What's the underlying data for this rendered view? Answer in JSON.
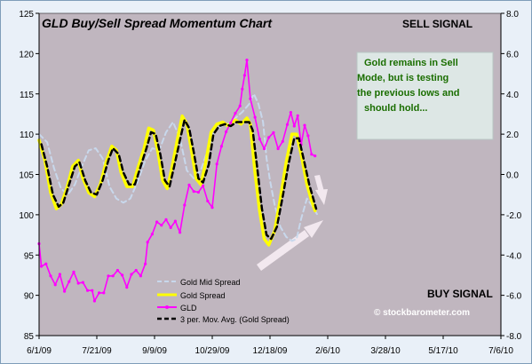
{
  "chart_data": {
    "type": "line",
    "title": "GLD Buy/Sell Spread Momentum Chart",
    "x_ticks": [
      "6/1/09",
      "7/21/09",
      "9/9/09",
      "10/29/09",
      "12/18/09",
      "2/6/10",
      "3/28/10",
      "5/17/10",
      "7/6/10"
    ],
    "y_left_ticks": [
      85,
      90,
      95,
      100,
      105,
      110,
      115,
      120,
      125
    ],
    "y_right_ticks": [
      "-8.0",
      "-6.0",
      "-4.0",
      "-2.0",
      "0.0",
      "2.0",
      "4.0",
      "6.0",
      "8.0"
    ],
    "xlim": [
      "6/1/09",
      "7/6/10"
    ],
    "ylim_left": [
      85,
      125
    ],
    "ylim_right": [
      -8,
      8
    ],
    "grid": false,
    "legend_position": "bottom-center",
    "colors": {
      "plot_bg": "#c0b6bf",
      "outer_bg": "#e9f0f8",
      "gld": "#ff00ff",
      "gold_spread": "#ffff00",
      "mid_spread": "#c8d8ec",
      "mov_avg": "#000000",
      "title": "#000000",
      "note_text": "#1a6e00",
      "note_bg": "#dde7e5",
      "arrow": "#f2e8ef"
    },
    "annotations": {
      "sell_signal": "SELL SIGNAL",
      "buy_signal": "BUY SIGNAL",
      "note": [
        "Gold remains in Sell",
        "Mode, but is testing",
        "the previous lows and",
        "should hold..."
      ],
      "watermark": "© stockbarometer.com"
    },
    "series": [
      {
        "name": "Gold Mid Spread",
        "axis": "right",
        "style": "dashed",
        "points": [
          [
            "6/1/09",
            2.0
          ],
          [
            "6/8/09",
            1.6
          ],
          [
            "6/14/09",
            0.3
          ],
          [
            "6/20/09",
            -0.7
          ],
          [
            "6/26/09",
            -1.0
          ],
          [
            "7/2/09",
            -0.5
          ],
          [
            "7/8/09",
            0.4
          ],
          [
            "7/14/09",
            1.2
          ],
          [
            "7/20/09",
            1.3
          ],
          [
            "7/26/09",
            0.8
          ],
          [
            "8/1/09",
            -0.6
          ],
          [
            "8/7/09",
            -1.2
          ],
          [
            "8/13/09",
            -1.4
          ],
          [
            "8/19/09",
            -1.2
          ],
          [
            "8/25/09",
            -0.4
          ],
          [
            "9/1/09",
            0.7
          ],
          [
            "9/7/09",
            1.3
          ],
          [
            "9/13/09",
            1.2
          ],
          [
            "9/19/09",
            2.1
          ],
          [
            "9/25/09",
            2.6
          ],
          [
            "10/1/09",
            1.8
          ],
          [
            "10/7/09",
            0.2
          ],
          [
            "10/13/09",
            -0.2
          ],
          [
            "10/19/09",
            0.2
          ],
          [
            "10/25/09",
            1.2
          ],
          [
            "10/31/09",
            2.2
          ],
          [
            "11/6/09",
            2.4
          ],
          [
            "11/12/09",
            2.5
          ],
          [
            "11/18/09",
            2.8
          ],
          [
            "11/24/09",
            3.1
          ],
          [
            "11/30/09",
            3.5
          ],
          [
            "12/4/09",
            4.0
          ],
          [
            "12/8/09",
            3.5
          ],
          [
            "12/12/09",
            2.6
          ],
          [
            "12/15/09",
            0.8
          ],
          [
            "12/18/09",
            -0.3
          ],
          [
            "12/22/09",
            -1.5
          ],
          [
            "12/27/09",
            -2.6
          ],
          [
            "1/1/10",
            -3.1
          ],
          [
            "1/6/10",
            -3.3
          ],
          [
            "1/10/10",
            -3.2
          ],
          [
            "1/14/10",
            -2.2
          ],
          [
            "1/19/10",
            -1.2
          ],
          [
            "1/24/10",
            -1.6
          ],
          [
            "1/28/10",
            -2.0
          ]
        ]
      },
      {
        "name": "Gold  Spread",
        "axis": "right",
        "style": "solid",
        "points": [
          [
            "6/1/09",
            1.7
          ],
          [
            "6/6/09",
            0.7
          ],
          [
            "6/11/09",
            -0.9
          ],
          [
            "6/16/09",
            -1.7
          ],
          [
            "6/20/09",
            -1.5
          ],
          [
            "6/25/09",
            -0.7
          ],
          [
            "6/30/09",
            0.4
          ],
          [
            "7/5/09",
            0.7
          ],
          [
            "7/9/09",
            -0.2
          ],
          [
            "7/14/09",
            -0.9
          ],
          [
            "7/19/09",
            -1.1
          ],
          [
            "7/24/09",
            -0.5
          ],
          [
            "7/29/09",
            0.6
          ],
          [
            "8/3/09",
            1.4
          ],
          [
            "8/7/09",
            1.2
          ],
          [
            "8/11/09",
            0.1
          ],
          [
            "8/16/09",
            -0.6
          ],
          [
            "8/21/09",
            -0.6
          ],
          [
            "8/26/09",
            0.4
          ],
          [
            "8/31/09",
            1.3
          ],
          [
            "9/4/09",
            2.3
          ],
          [
            "9/8/09",
            2.2
          ],
          [
            "9/12/09",
            1.1
          ],
          [
            "9/16/09",
            -0.3
          ],
          [
            "9/20/09",
            -0.7
          ],
          [
            "9/24/09",
            0.3
          ],
          [
            "9/29/09",
            1.8
          ],
          [
            "10/3/09",
            2.9
          ],
          [
            "10/7/09",
            2.5
          ],
          [
            "10/11/09",
            1.2
          ],
          [
            "10/15/09",
            -0.2
          ],
          [
            "10/19/09",
            -0.5
          ],
          [
            "10/23/09",
            0.5
          ],
          [
            "10/28/09",
            2.1
          ],
          [
            "11/2/09",
            2.5
          ],
          [
            "11/7/09",
            2.6
          ],
          [
            "11/12/09",
            2.4
          ],
          [
            "11/18/09",
            2.7
          ],
          [
            "11/23/09",
            2.5
          ],
          [
            "11/28/09",
            2.8
          ],
          [
            "12/1/09",
            2.5
          ],
          [
            "12/5/09",
            0.1
          ],
          [
            "12/9/09",
            -1.8
          ],
          [
            "12/13/09",
            -3.2
          ],
          [
            "12/17/09",
            -3.5
          ],
          [
            "12/22/09",
            -2.8
          ],
          [
            "12/27/09",
            -1.2
          ],
          [
            "1/1/10",
            0.6
          ],
          [
            "1/6/10",
            2.0
          ],
          [
            "1/10/10",
            2.0
          ],
          [
            "1/14/10",
            1.0
          ],
          [
            "1/19/10",
            -0.5
          ],
          [
            "1/23/10",
            -1.3
          ],
          [
            "1/26/10",
            -1.8
          ]
        ]
      },
      {
        "name": "GLD",
        "axis": "left",
        "style": "solid-markers",
        "points": [
          [
            "6/1/09",
            96.4
          ],
          [
            "6/3/09",
            93.6
          ],
          [
            "6/7/09",
            93.9
          ],
          [
            "6/11/09",
            92.4
          ],
          [
            "6/15/09",
            91.3
          ],
          [
            "6/19/09",
            92.6
          ],
          [
            "6/23/09",
            90.5
          ],
          [
            "6/27/09",
            91.7
          ],
          [
            "7/1/09",
            92.9
          ],
          [
            "7/5/09",
            91.5
          ],
          [
            "7/9/09",
            91.6
          ],
          [
            "7/13/09",
            90.6
          ],
          [
            "7/17/09",
            90.6
          ],
          [
            "7/19/09",
            89.3
          ],
          [
            "7/23/09",
            90.3
          ],
          [
            "7/27/09",
            90.3
          ],
          [
            "7/31/09",
            92.4
          ],
          [
            "8/4/09",
            92.4
          ],
          [
            "8/8/09",
            93.1
          ],
          [
            "8/12/09",
            92.5
          ],
          [
            "8/16/09",
            91.0
          ],
          [
            "8/20/09",
            92.6
          ],
          [
            "8/24/09",
            93.1
          ],
          [
            "8/28/09",
            92.4
          ],
          [
            "9/1/09",
            93.9
          ],
          [
            "9/3/09",
            96.6
          ],
          [
            "9/7/09",
            97.6
          ],
          [
            "9/11/09",
            99.1
          ],
          [
            "9/15/09",
            98.7
          ],
          [
            "9/19/09",
            99.4
          ],
          [
            "9/23/09",
            98.4
          ],
          [
            "9/27/09",
            99.2
          ],
          [
            "10/1/09",
            97.8
          ],
          [
            "10/5/09",
            101.2
          ],
          [
            "10/9/09",
            103.7
          ],
          [
            "10/13/09",
            102.9
          ],
          [
            "10/17/09",
            102.8
          ],
          [
            "10/21/09",
            103.6
          ],
          [
            "10/25/09",
            101.7
          ],
          [
            "10/29/09",
            100.9
          ],
          [
            "11/2/09",
            106.3
          ],
          [
            "11/6/09",
            108.5
          ],
          [
            "11/10/09",
            110.3
          ],
          [
            "11/14/09",
            111.4
          ],
          [
            "11/18/09",
            112.6
          ],
          [
            "11/22/09",
            113.5
          ],
          [
            "11/24/09",
            115.6
          ],
          [
            "11/26/09",
            117.3
          ],
          [
            "11/28/09",
            119.2
          ],
          [
            "12/1/09",
            114.4
          ],
          [
            "12/5/09",
            112.1
          ],
          [
            "12/9/09",
            109.4
          ],
          [
            "12/13/09",
            108.2
          ],
          [
            "12/17/09",
            109.6
          ],
          [
            "12/21/09",
            110.2
          ],
          [
            "12/25/09",
            108.2
          ],
          [
            "12/29/09",
            109.1
          ],
          [
            "1/2/10",
            111.2
          ],
          [
            "1/5/10",
            112.7
          ],
          [
            "1/8/10",
            111.0
          ],
          [
            "1/11/10",
            112.3
          ],
          [
            "1/14/10",
            108.7
          ],
          [
            "1/17/10",
            111.1
          ],
          [
            "1/20/10",
            109.8
          ],
          [
            "1/23/10",
            107.5
          ],
          [
            "1/26/10",
            107.3
          ]
        ]
      },
      {
        "name": "3 per. Mov. Avg. (Gold  Spread)",
        "axis": "right",
        "style": "dashed",
        "points": [
          [
            "6/3/09",
            1.5
          ],
          [
            "6/8/09",
            0.4
          ],
          [
            "6/13/09",
            -1.0
          ],
          [
            "6/18/09",
            -1.6
          ],
          [
            "6/22/09",
            -1.4
          ],
          [
            "6/27/09",
            -0.5
          ],
          [
            "7/2/09",
            0.4
          ],
          [
            "7/6/09",
            0.6
          ],
          [
            "7/11/09",
            -0.3
          ],
          [
            "7/16/09",
            -0.9
          ],
          [
            "7/21/09",
            -1.0
          ],
          [
            "7/26/09",
            -0.3
          ],
          [
            "7/31/09",
            0.7
          ],
          [
            "8/4/09",
            1.3
          ],
          [
            "8/9/09",
            1.0
          ],
          [
            "8/13/09",
            0.1
          ],
          [
            "8/18/09",
            -0.5
          ],
          [
            "8/23/09",
            -0.5
          ],
          [
            "8/28/09",
            0.4
          ],
          [
            "9/2/09",
            1.3
          ],
          [
            "9/6/09",
            2.1
          ],
          [
            "9/10/09",
            2.0
          ],
          [
            "9/14/09",
            1.0
          ],
          [
            "9/18/09",
            -0.3
          ],
          [
            "9/22/09",
            -0.6
          ],
          [
            "9/26/09",
            0.4
          ],
          [
            "10/1/09",
            1.7
          ],
          [
            "10/5/09",
            2.7
          ],
          [
            "10/9/09",
            2.3
          ],
          [
            "10/13/09",
            1.1
          ],
          [
            "10/17/09",
            -0.2
          ],
          [
            "10/21/09",
            -0.4
          ],
          [
            "10/26/09",
            0.5
          ],
          [
            "10/30/09",
            2.0
          ],
          [
            "11/4/09",
            2.4
          ],
          [
            "11/9/09",
            2.5
          ],
          [
            "11/14/09",
            2.4
          ],
          [
            "11/19/09",
            2.6
          ],
          [
            "11/25/09",
            2.6
          ],
          [
            "11/30/09",
            2.6
          ],
          [
            "12/3/09",
            2.2
          ],
          [
            "12/7/09",
            0.3
          ],
          [
            "12/11/09",
            -1.7
          ],
          [
            "12/15/09",
            -3.0
          ],
          [
            "12/19/09",
            -3.2
          ],
          [
            "12/24/09",
            -2.6
          ],
          [
            "12/29/09",
            -1.1
          ],
          [
            "1/3/10",
            0.5
          ],
          [
            "1/8/10",
            1.8
          ],
          [
            "1/12/10",
            1.8
          ],
          [
            "1/16/10",
            0.8
          ],
          [
            "1/21/10",
            -0.5
          ],
          [
            "1/25/10",
            -1.3
          ],
          [
            "1/27/10",
            -1.7
          ]
        ]
      }
    ]
  }
}
